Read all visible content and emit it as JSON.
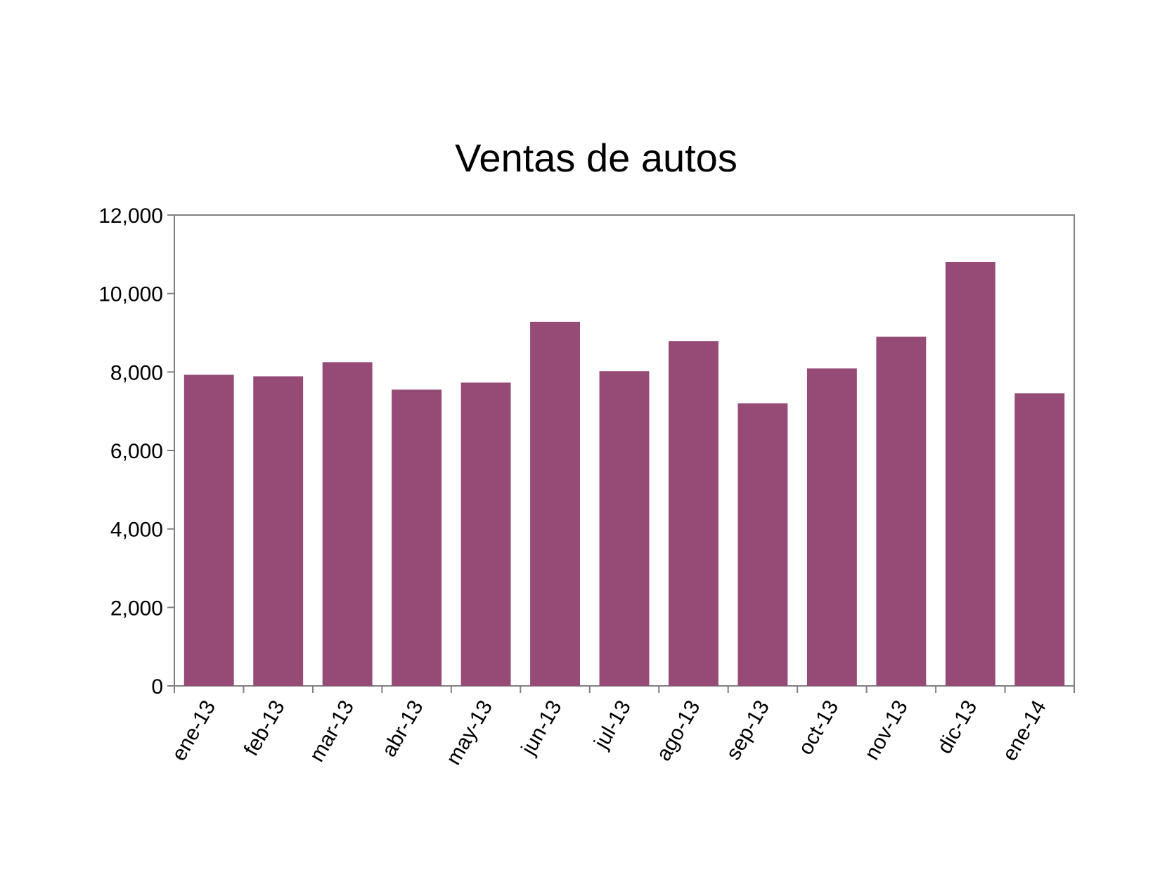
{
  "chart_data": {
    "type": "bar",
    "title": "Ventas de autos",
    "xlabel": "",
    "ylabel": "",
    "categories": [
      "ene-13",
      "feb-13",
      "mar-13",
      "abr-13",
      "may-13",
      "jun-13",
      "jul-13",
      "ago-13",
      "sep-13",
      "oct-13",
      "nov-13",
      "dic-13",
      "ene-14"
    ],
    "values": [
      7930,
      7890,
      8250,
      7550,
      7730,
      9280,
      8020,
      8790,
      7200,
      8090,
      8900,
      10800,
      7460
    ],
    "ylim": [
      0,
      12000
    ],
    "yticks": [
      "0",
      "2,000",
      "4,000",
      "6,000",
      "8,000",
      "10,000",
      "12,000"
    ],
    "grid": false,
    "legend": "none",
    "bar_color": "#954B76"
  }
}
